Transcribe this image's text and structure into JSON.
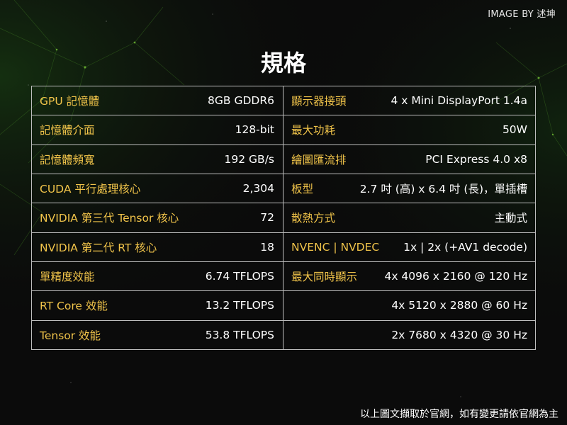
{
  "credit": "IMAGE BY 述坤",
  "title": "規格",
  "rows": [
    {
      "left_key": "GPU 記憶體",
      "left_value": "8GB GDDR6",
      "right_key": "顯示器接頭",
      "right_value": "4 x Mini DisplayPort 1.4a"
    },
    {
      "left_key": "記憶體介面",
      "left_value": "128-bit",
      "right_key": "最大功耗",
      "right_value": "50W"
    },
    {
      "left_key": "記憶體頻寬",
      "left_value": "192 GB/s",
      "right_key": "繪圖匯流排",
      "right_value": "PCI Express 4.0 x8"
    },
    {
      "left_key": "CUDA 平行處理核心",
      "left_value": "2,304",
      "right_key": "板型",
      "right_value": "2.7 吋 (高) x 6.4 吋 (長)，單插槽"
    },
    {
      "left_key": "NVIDIA 第三代 Tensor 核心",
      "left_value": "72",
      "right_key": "散熱方式",
      "right_value": "主動式"
    },
    {
      "left_key": "NVIDIA 第二代 RT 核心",
      "left_value": "18",
      "right_key": "NVENC | NVDEC",
      "right_value": "1x | 2x (+AV1 decode)"
    },
    {
      "left_key": "單精度效能",
      "left_value": "6.74 TFLOPS",
      "right_key": "最大同時顯示",
      "right_value": "4x 4096 x 2160 @ 120 Hz"
    },
    {
      "left_key": "RT Core 效能",
      "left_value": "13.2 TFLOPS",
      "right_key": "",
      "right_value": "4x 5120 x 2880 @ 60 Hz"
    },
    {
      "left_key": "Tensor 效能",
      "left_value": "53.8 TFLOPS",
      "right_key": "",
      "right_value": "2x 7680 x 4320 @ 30 Hz"
    }
  ],
  "footnote": "以上圖文擷取於官網，如有變更請依官網為主",
  "colors": {
    "background": "#0b0b0b",
    "key_text": "#f1c44a",
    "value_text": "#ffffff",
    "border": "#bdbdbd",
    "accent_glow": "#6fbf2a"
  }
}
